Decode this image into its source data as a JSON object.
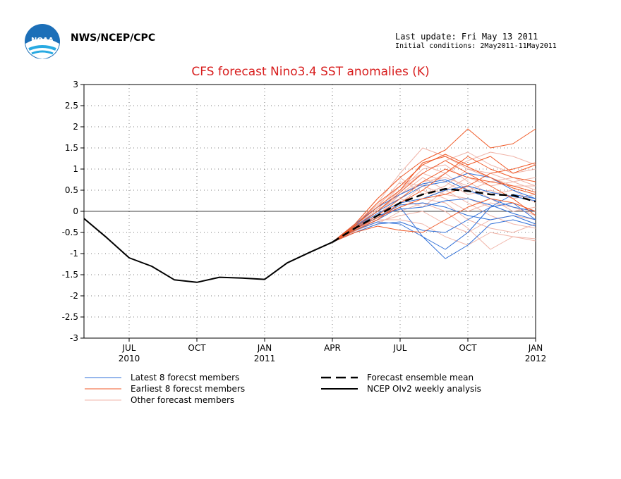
{
  "header": {
    "org": "NWS/NCEP/CPC",
    "last_update": "Last update: Fri May 13 2011",
    "initial_conditions": "Initial conditions: 2May2011-11May2011"
  },
  "logo": {
    "icon": "noaa-logo-icon",
    "text": "NOAA"
  },
  "chart_data": {
    "type": "line",
    "title": "CFS forecast Nino3.4 SST anomalies (K)",
    "ylim": [
      -3,
      3
    ],
    "xlim": [
      0,
      20
    ],
    "yticks": [
      -3,
      -2.5,
      -2,
      -1.5,
      -1,
      -0.5,
      0,
      0.5,
      1,
      1.5,
      2,
      2.5,
      3
    ],
    "xticks": [
      {
        "x": 2,
        "label": "JUL",
        "sub": "2010"
      },
      {
        "x": 5,
        "label": "OCT",
        "sub": ""
      },
      {
        "x": 8,
        "label": "JAN",
        "sub": "2011"
      },
      {
        "x": 11,
        "label": "APR",
        "sub": ""
      },
      {
        "x": 14,
        "label": "JUL",
        "sub": ""
      },
      {
        "x": 17,
        "label": "OCT",
        "sub": ""
      },
      {
        "x": 20,
        "label": "JAN",
        "sub": "2012"
      }
    ],
    "grid": true,
    "zero_line": true,
    "colors": {
      "latest": "#2f6fd8",
      "earliest": "#f05a28",
      "other": "#f0b4a8",
      "mean": "#000000",
      "obs": "#000000"
    },
    "observed": {
      "name": "NCEP OIv2 weekly analysis",
      "x": [
        0,
        1,
        2,
        3,
        4,
        5,
        6,
        7,
        8,
        9,
        10,
        11
      ],
      "y": [
        -0.17,
        -0.62,
        -1.1,
        -1.3,
        -1.62,
        -1.68,
        -1.56,
        -1.58,
        -1.61,
        -1.22,
        -0.97,
        -0.73
      ]
    },
    "ensemble_mean": {
      "name": "Forecast ensemble mean",
      "x": [
        11,
        12,
        13,
        14,
        15,
        16,
        17,
        18,
        19,
        20
      ],
      "y": [
        -0.73,
        -0.4,
        -0.1,
        0.2,
        0.4,
        0.53,
        0.48,
        0.4,
        0.38,
        0.23
      ]
    },
    "latest_members": {
      "name": "Latest 8 forecst members",
      "x": [
        11,
        12,
        13,
        14,
        15,
        16,
        17,
        18,
        19,
        20
      ],
      "values": [
        [
          -0.73,
          -0.5,
          -0.3,
          -0.25,
          -0.45,
          -0.5,
          -0.2,
          0.1,
          0.2,
          -0.2
        ],
        [
          -0.73,
          -0.45,
          -0.2,
          0.1,
          -0.6,
          -1.12,
          -0.8,
          -0.3,
          -0.2,
          -0.35
        ],
        [
          -0.73,
          -0.35,
          0.0,
          0.3,
          0.6,
          0.7,
          0.9,
          0.8,
          0.5,
          0.3
        ],
        [
          -0.73,
          -0.4,
          -0.15,
          0.15,
          0.2,
          0.1,
          -0.1,
          -0.2,
          -0.1,
          -0.3
        ],
        [
          -0.73,
          -0.3,
          0.1,
          0.4,
          0.65,
          0.75,
          0.5,
          0.3,
          0.1,
          0.0
        ],
        [
          -0.73,
          -0.45,
          -0.25,
          -0.3,
          -0.6,
          -0.9,
          -0.5,
          0.1,
          0.4,
          0.3
        ],
        [
          -0.73,
          -0.38,
          -0.05,
          0.2,
          0.3,
          0.5,
          0.6,
          0.45,
          0.35,
          0.25
        ],
        [
          -0.73,
          -0.42,
          -0.1,
          0.05,
          0.1,
          0.25,
          0.3,
          0.15,
          -0.05,
          -0.2
        ]
      ]
    },
    "earliest_members": {
      "name": "Earliest 8 forecst members",
      "x": [
        11,
        12,
        13,
        14,
        15,
        16,
        17,
        18,
        19,
        20
      ],
      "values": [
        [
          -0.73,
          -0.3,
          0.3,
          0.8,
          1.2,
          1.45,
          1.95,
          1.5,
          1.6,
          1.95
        ],
        [
          -0.73,
          -0.35,
          0.2,
          0.6,
          1.1,
          1.35,
          1.1,
          1.3,
          0.9,
          1.1
        ],
        [
          -0.73,
          -0.45,
          -0.2,
          0.2,
          0.5,
          0.9,
          1.3,
          1.0,
          0.8,
          0.7
        ],
        [
          -0.73,
          -0.4,
          -0.1,
          0.3,
          0.7,
          1.0,
          0.8,
          0.7,
          0.6,
          0.45
        ],
        [
          -0.73,
          -0.5,
          -0.35,
          -0.45,
          -0.5,
          -0.2,
          0.1,
          0.3,
          0.2,
          0.0
        ],
        [
          -0.73,
          -0.38,
          0.0,
          0.45,
          0.9,
          1.2,
          0.9,
          0.6,
          0.3,
          -0.1
        ],
        [
          -0.73,
          -0.42,
          -0.15,
          0.1,
          0.3,
          0.4,
          0.6,
          0.9,
          1.0,
          1.15
        ],
        [
          -0.73,
          -0.33,
          0.1,
          0.5,
          1.15,
          1.3,
          1.05,
          0.8,
          0.55,
          0.4
        ]
      ]
    },
    "other_members": {
      "name": "Other forecast members",
      "x": [
        11,
        12,
        13,
        14,
        15,
        16,
        17,
        18,
        19,
        20
      ],
      "values": [
        [
          -0.73,
          -0.3,
          0.2,
          0.9,
          1.5,
          1.3,
          1.0,
          0.9,
          0.7,
          0.8
        ],
        [
          -0.73,
          -0.35,
          0.1,
          0.7,
          0.6,
          0.9,
          1.2,
          1.4,
          1.3,
          1.1
        ],
        [
          -0.73,
          -0.45,
          -0.2,
          -0.2,
          -0.3,
          -0.6,
          -0.8,
          -0.5,
          -0.6,
          -0.65
        ],
        [
          -0.73,
          -0.4,
          -0.1,
          0.4,
          0.8,
          0.5,
          0.2,
          -0.1,
          -0.3,
          -0.4
        ],
        [
          -0.73,
          -0.38,
          0.0,
          0.5,
          1.0,
          1.1,
          0.7,
          0.4,
          0.5,
          0.2
        ],
        [
          -0.73,
          -0.42,
          -0.2,
          0.1,
          0.3,
          0.2,
          -0.2,
          -0.4,
          -0.5,
          -0.3
        ],
        [
          -0.73,
          -0.32,
          0.15,
          0.6,
          0.9,
          1.2,
          1.4,
          1.1,
          0.9,
          1.0
        ],
        [
          -0.73,
          -0.5,
          -0.3,
          0.0,
          0.2,
          0.0,
          -0.4,
          -0.9,
          -0.6,
          -0.7
        ],
        [
          -0.73,
          -0.36,
          0.05,
          0.3,
          0.1,
          0.5,
          0.8,
          0.6,
          0.7,
          0.5
        ],
        [
          -0.73,
          -0.44,
          -0.15,
          0.2,
          0.5,
          0.3,
          0.0,
          0.2,
          0.1,
          -0.1
        ],
        [
          -0.73,
          -0.3,
          0.3,
          0.8,
          0.4,
          0.6,
          1.0,
          0.8,
          0.6,
          0.6
        ],
        [
          -0.73,
          -0.4,
          0.0,
          0.4,
          0.7,
          0.8,
          0.6,
          0.3,
          0.0,
          0.1
        ],
        [
          -0.73,
          -0.47,
          -0.25,
          -0.1,
          0.0,
          -0.3,
          -0.5,
          -0.2,
          -0.1,
          -0.2
        ],
        [
          -0.73,
          -0.34,
          0.1,
          0.5,
          0.9,
          0.7,
          0.4,
          0.5,
          0.3,
          0.4
        ],
        [
          -0.73,
          -0.41,
          -0.05,
          0.2,
          0.6,
          0.4,
          0.3,
          0.1,
          0.2,
          0.0
        ],
        [
          -0.73,
          -0.37,
          0.05,
          0.6,
          1.1,
          0.9,
          0.5,
          0.7,
          0.8,
          0.6
        ]
      ]
    },
    "legend": [
      {
        "key": "latest",
        "label": "Latest 8 forecst members",
        "style": "thin"
      },
      {
        "key": "earliest",
        "label": "Earliest 8 forecst members",
        "style": "thin"
      },
      {
        "key": "other",
        "label": "Other forecast members",
        "style": "thin"
      },
      {
        "key": "mean",
        "label": "Forecast ensemble mean",
        "style": "dashed"
      },
      {
        "key": "obs",
        "label": "NCEP OIv2 weekly analysis",
        "style": "solid"
      }
    ]
  }
}
